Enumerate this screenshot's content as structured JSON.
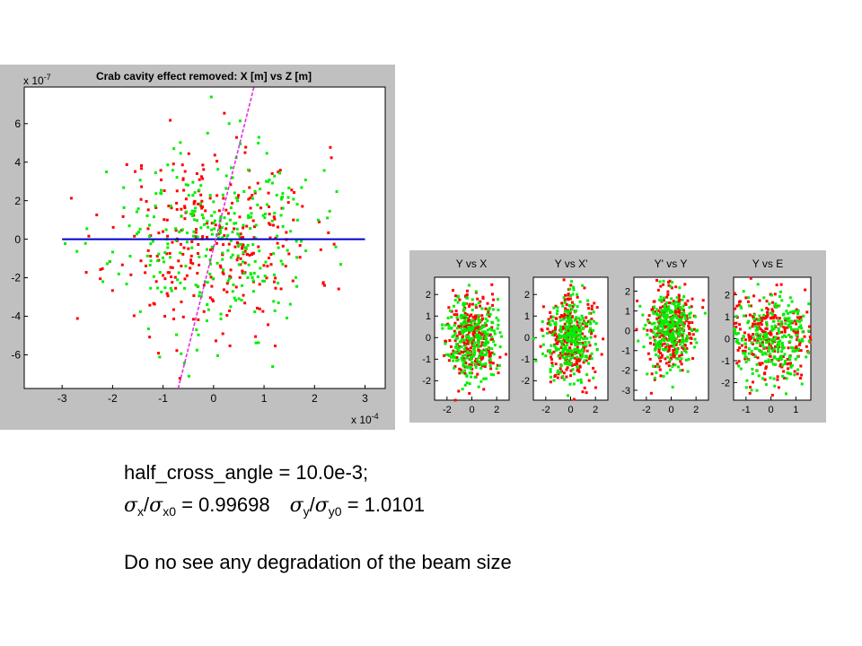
{
  "chart_data": [
    {
      "type": "scatter",
      "title": "Crab cavity effect removed: X [m] vs Z [m]",
      "xlabel": "",
      "ylabel": "",
      "x_exponent_label": "x 10",
      "x_exponent": "-4",
      "y_exponent_label": "x 10",
      "y_exponent": "-7",
      "xlim": [
        -3.75,
        3.4
      ],
      "ylim": [
        -7.75,
        7.9
      ],
      "xticks": [
        -3,
        -2,
        -1,
        0,
        1,
        2,
        3
      ],
      "yticks": [
        -6,
        -4,
        -2,
        0,
        2,
        4,
        6
      ],
      "grid": false,
      "series": [
        {
          "role": "particles-red",
          "color": "#ff0000",
          "distribution": {
            "sigma_x": 1.0,
            "sigma_y": 2.4,
            "count": 300,
            "seed": 11
          }
        },
        {
          "role": "particles-green",
          "color": "#00ee00",
          "distribution": {
            "sigma_x": 1.0,
            "sigma_y": 2.4,
            "count": 300,
            "seed": 23
          }
        },
        {
          "role": "axis-line",
          "color": "#0000cc",
          "points": [
            [
              -3,
              0
            ],
            [
              3,
              0
            ]
          ]
        },
        {
          "role": "crab-line",
          "color": "#e030e0",
          "points": [
            [
              -0.7,
              -7.75
            ],
            [
              0.8,
              7.9
            ]
          ]
        }
      ]
    },
    {
      "type": "scatter",
      "title": "Y  vs X",
      "xlim": [
        -3,
        3
      ],
      "ylim": [
        -2.9,
        2.8
      ],
      "xticks": [
        -2,
        0,
        2
      ],
      "yticks": [
        -2,
        -1,
        0,
        1,
        2
      ],
      "series": [
        {
          "role": "particles-red",
          "color": "#ff0000",
          "distribution": {
            "sigma_x": 1.0,
            "sigma_y": 1.0,
            "count": 260,
            "seed": 31
          }
        },
        {
          "role": "particles-green",
          "color": "#00ee00",
          "distribution": {
            "sigma_x": 1.0,
            "sigma_y": 1.0,
            "count": 260,
            "seed": 37
          }
        }
      ]
    },
    {
      "type": "scatter",
      "title": "Y  vs X'",
      "xlim": [
        -3,
        3
      ],
      "ylim": [
        -2.9,
        2.8
      ],
      "xticks": [
        -2,
        0,
        2
      ],
      "yticks": [
        -2,
        -1,
        0,
        1,
        2
      ],
      "series": [
        {
          "role": "particles-red",
          "color": "#ff0000",
          "distribution": {
            "sigma_x": 1.0,
            "sigma_y": 1.0,
            "count": 260,
            "seed": 41
          }
        },
        {
          "role": "particles-green",
          "color": "#00ee00",
          "distribution": {
            "sigma_x": 1.0,
            "sigma_y": 1.0,
            "count": 260,
            "seed": 43
          }
        }
      ]
    },
    {
      "type": "scatter",
      "title": "Y' vs Y",
      "xlim": [
        -3,
        3
      ],
      "ylim": [
        -3.5,
        2.7
      ],
      "xticks": [
        -2,
        0,
        2
      ],
      "yticks": [
        -3,
        -2,
        -1,
        0,
        1,
        2
      ],
      "series": [
        {
          "role": "particles-red",
          "color": "#ff0000",
          "distribution": {
            "sigma_x": 1.0,
            "sigma_y": 1.0,
            "count": 260,
            "seed": 47
          }
        },
        {
          "role": "particles-green",
          "color": "#00ee00",
          "distribution": {
            "sigma_x": 1.0,
            "sigma_y": 1.0,
            "count": 260,
            "seed": 53
          }
        }
      ]
    },
    {
      "type": "scatter",
      "title": "Y  vs E",
      "xlim": [
        -1.5,
        1.6
      ],
      "ylim": [
        -2.8,
        2.8
      ],
      "xticks": [
        -1,
        0,
        1
      ],
      "yticks": [
        -2,
        -1,
        0,
        1,
        2
      ],
      "series": [
        {
          "role": "particles-red",
          "color": "#ff0000",
          "distribution": {
            "sigma_x": 0.9,
            "sigma_y": 1.0,
            "count": 260,
            "seed": 59
          }
        },
        {
          "role": "particles-green",
          "color": "#00ee00",
          "distribution": {
            "sigma_x": 0.9,
            "sigma_y": 1.0,
            "count": 260,
            "seed": 61
          }
        }
      ]
    }
  ],
  "caption": {
    "line1": "half_cross_angle = 10.0e-3;",
    "sigma": "σ",
    "sub_x": "x",
    "sub_x0": "x0",
    "sub_y": "y",
    "sub_y0": "y0",
    "slash": "/",
    "ratio_x_value": " = 0.99698",
    "ratio_y_value": " = 1.0101",
    "line3": "Do no see any degradation of the beam size"
  }
}
